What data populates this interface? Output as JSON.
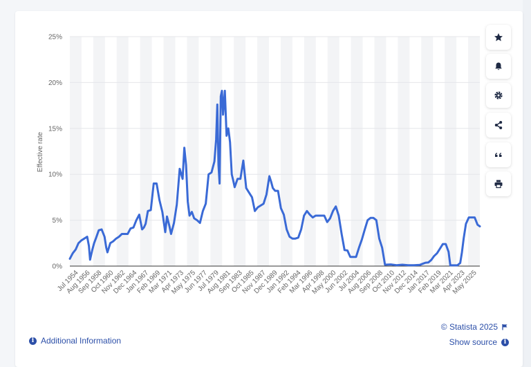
{
  "chart_data": {
    "type": "line",
    "title": "",
    "xlabel": "",
    "ylabel": "Effective rate",
    "ylim": [
      0,
      25
    ],
    "y_ticks": [
      "0%",
      "5%",
      "10%",
      "15%",
      "20%",
      "25%"
    ],
    "x_tick_labels": [
      "Jul 1954",
      "Aug 1956",
      "Sep 1958",
      "Oct 1960",
      "Nov 1962",
      "Dec 1964",
      "Jan 1967",
      "Feb 1969",
      "Mar 1971",
      "Apr 1973",
      "May 1975",
      "Jun 1977",
      "Jul 1979",
      "Aug 1981",
      "Sep 1983",
      "Oct 1985",
      "Nov 1987",
      "Dec 1989",
      "Jan 1992",
      "Feb 1994",
      "Mar 1996",
      "Apr 1998",
      "May 2000",
      "Jun 2002",
      "Jul 2004",
      "Aug 2006",
      "Sep 2008",
      "Oct 2010",
      "Nov 2012",
      "Dec 2014",
      "Jan 2017",
      "Feb 2019",
      "Mar 2021",
      "Apr 2023",
      "May 2025"
    ],
    "grid": true,
    "series_color": "#3a6ad6",
    "series": [
      {
        "x": [
          1954.5,
          1955.0,
          1955.5,
          1956.0,
          1956.5,
          1957.0,
          1957.5,
          1957.8,
          1958.0,
          1958.4,
          1958.7,
          1959.0,
          1959.5,
          1960.0,
          1960.5,
          1960.8,
          1961.0,
          1961.5,
          1962.0,
          1962.5,
          1963.0,
          1963.5,
          1964.0,
          1964.5,
          1965.0,
          1965.5,
          1966.0,
          1966.5,
          1967.0,
          1967.3,
          1967.6,
          1968.0,
          1968.5,
          1969.0,
          1969.5,
          1970.0,
          1970.5,
          1971.0,
          1971.3,
          1971.7,
          1972.0,
          1972.5,
          1973.0,
          1973.5,
          1974.0,
          1974.3,
          1974.6,
          1974.9,
          1975.2,
          1975.6,
          1976.0,
          1976.5,
          1977.0,
          1977.5,
          1978.0,
          1978.5,
          1979.0,
          1979.5,
          1979.8,
          1980.0,
          1980.2,
          1980.4,
          1980.6,
          1980.8,
          1981.0,
          1981.3,
          1981.6,
          1981.9,
          1982.2,
          1982.5,
          1982.8,
          1983.0,
          1983.5,
          1984.0,
          1984.5,
          1985.0,
          1985.5,
          1986.0,
          1986.5,
          1987.0,
          1987.5,
          1988.0,
          1988.5,
          1989.0,
          1989.3,
          1989.6,
          1990.0,
          1990.5,
          1991.0,
          1991.5,
          1992.0,
          1992.5,
          1993.0,
          1993.5,
          1994.0,
          1994.5,
          1995.0,
          1995.5,
          1996.0,
          1996.5,
          1997.0,
          1997.5,
          1998.0,
          1998.5,
          1999.0,
          1999.5,
          2000.0,
          2000.5,
          2001.0,
          2001.5,
          2002.0,
          2002.5,
          2003.0,
          2003.5,
          2004.0,
          2004.5,
          2005.0,
          2005.5,
          2006.0,
          2006.5,
          2007.0,
          2007.5,
          2008.0,
          2008.5,
          2009.0,
          2010.0,
          2011.0,
          2012.0,
          2013.0,
          2014.0,
          2015.0,
          2015.5,
          2016.0,
          2016.5,
          2017.0,
          2017.5,
          2018.0,
          2018.5,
          2019.0,
          2019.5,
          2020.0,
          2020.3,
          2021.0,
          2021.5,
          2022.0,
          2022.3,
          2022.6,
          2023.0,
          2023.5,
          2024.0,
          2024.5,
          2025.0,
          2025.4
        ],
        "y": [
          0.8,
          1.4,
          1.8,
          2.5,
          2.8,
          3.0,
          3.2,
          2.2,
          0.7,
          1.8,
          2.5,
          3.0,
          3.9,
          4.0,
          3.2,
          2.0,
          1.5,
          2.5,
          2.7,
          3.0,
          3.2,
          3.5,
          3.5,
          3.5,
          4.1,
          4.2,
          5.0,
          5.6,
          4.0,
          4.2,
          4.6,
          6.0,
          6.1,
          9.0,
          9.0,
          7.2,
          5.9,
          3.7,
          5.4,
          4.4,
          3.5,
          4.7,
          6.7,
          10.6,
          9.5,
          12.9,
          11.0,
          7.0,
          5.5,
          5.9,
          5.2,
          5.0,
          4.7,
          6.0,
          6.8,
          10.0,
          10.2,
          11.4,
          13.8,
          17.6,
          11.0,
          9.0,
          18.5,
          19.1,
          16.5,
          19.1,
          14.2,
          15.0,
          13.5,
          10.0,
          9.2,
          8.6,
          9.5,
          9.5,
          11.5,
          8.5,
          8.0,
          7.5,
          6.0,
          6.4,
          6.6,
          6.8,
          7.8,
          9.8,
          9.2,
          8.5,
          8.2,
          8.2,
          6.3,
          5.6,
          4.0,
          3.2,
          3.0,
          3.0,
          3.1,
          4.0,
          5.5,
          6.0,
          5.6,
          5.3,
          5.5,
          5.5,
          5.5,
          5.5,
          4.8,
          5.2,
          6.0,
          6.5,
          5.5,
          3.5,
          1.75,
          1.7,
          1.0,
          1.0,
          1.0,
          2.0,
          2.9,
          4.0,
          5.0,
          5.25,
          5.25,
          5.0,
          3.0,
          2.0,
          0.15,
          0.18,
          0.1,
          0.15,
          0.1,
          0.1,
          0.13,
          0.25,
          0.37,
          0.4,
          0.66,
          1.1,
          1.4,
          1.9,
          2.4,
          2.4,
          1.55,
          0.08,
          0.08,
          0.08,
          0.33,
          1.5,
          3.0,
          4.6,
          5.3,
          5.3,
          5.3,
          4.5,
          4.33
        ]
      }
    ]
  },
  "actions": {
    "favorite_icon": "star-icon",
    "notify_icon": "bell-icon",
    "settings_icon": "gear-icon",
    "share_icon": "share-icon",
    "cite_icon": "quote-icon",
    "print_icon": "print-icon"
  },
  "footer": {
    "additional_info": "Additional Information",
    "copyright": "© Statista 2025",
    "show_source": "Show source"
  },
  "colors": {
    "link": "#2c4fa8",
    "band": "#f3f4f6"
  }
}
